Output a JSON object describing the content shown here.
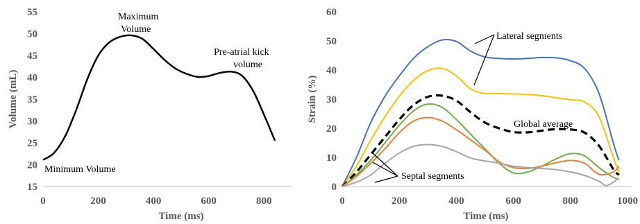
{
  "chart_data": [
    {
      "type": "line",
      "xlabel": "Time (ms)",
      "ylabel": "Volume (mL)",
      "xlim": [
        0,
        900
      ],
      "ylim": [
        15,
        55
      ],
      "xticks": [
        "0",
        "200",
        "400",
        "600",
        "800"
      ],
      "yticks": [
        "15",
        "20",
        "25",
        "30",
        "35",
        "40",
        "45",
        "50",
        "55"
      ],
      "grid": false,
      "series": [
        {
          "color": "#000000",
          "x": [
            0,
            40,
            80,
            120,
            160,
            200,
            240,
            280,
            320,
            360,
            400,
            440,
            480,
            520,
            560,
            600,
            640,
            680,
            720,
            760,
            800,
            840
          ],
          "y": [
            21.1,
            22.7,
            26.5,
            32.5,
            39.5,
            45.0,
            48.0,
            49.3,
            49.6,
            48.8,
            46.5,
            44.0,
            42.0,
            40.8,
            40.1,
            40.3,
            41.0,
            41.3,
            40.4,
            37.0,
            31.5,
            25.5
          ]
        }
      ],
      "annotations": [
        {
          "text": [
            "Maximum",
            "Volume"
          ]
        },
        {
          "text": [
            "Pre-atrial kick",
            "volume"
          ]
        },
        {
          "text": [
            "Minimum Volume"
          ]
        }
      ]
    },
    {
      "type": "line",
      "xlabel": "Time (ms)",
      "ylabel": "Strain (%)",
      "xlim": [
        0,
        1000
      ],
      "ylim": [
        0,
        60
      ],
      "xticks": [
        "0",
        "200",
        "400",
        "600",
        "800",
        "1000"
      ],
      "yticks": [
        "0",
        "10",
        "20",
        "30",
        "40",
        "50",
        "60"
      ],
      "grid": false,
      "series": [
        {
          "color": "#4472c4",
          "dash": false,
          "x": [
            0,
            50,
            100,
            150,
            200,
            250,
            300,
            350,
            400,
            450,
            500,
            550,
            600,
            650,
            700,
            750,
            800,
            850,
            900,
            950,
            970
          ],
          "y": [
            0,
            10,
            22,
            31,
            38,
            44,
            48,
            50.3,
            49.8,
            46.5,
            44.5,
            44,
            43.8,
            44,
            44.3,
            44.2,
            43.2,
            40.5,
            32,
            15,
            9
          ]
        },
        {
          "color": "#ffc000",
          "dash": false,
          "x": [
            0,
            50,
            100,
            150,
            200,
            250,
            300,
            350,
            400,
            450,
            500,
            550,
            600,
            650,
            700,
            750,
            800,
            850,
            900,
            950,
            970
          ],
          "y": [
            0,
            7,
            16,
            24,
            31,
            36.5,
            39.8,
            40.6,
            38,
            33.5,
            32,
            31.9,
            31.8,
            31.6,
            31.2,
            30.5,
            29.8,
            29,
            24,
            10,
            5
          ]
        },
        {
          "color": "#000000",
          "dash": true,
          "x": [
            0,
            50,
            100,
            150,
            200,
            250,
            300,
            350,
            400,
            450,
            500,
            550,
            600,
            650,
            700,
            750,
            800,
            850,
            900,
            950,
            970
          ],
          "y": [
            0,
            5,
            11,
            17,
            23,
            28,
            30.8,
            31.2,
            29.5,
            25.5,
            22,
            20,
            18.7,
            18.6,
            19.2,
            19.7,
            19.6,
            18.5,
            14,
            6,
            4
          ]
        },
        {
          "color": "#70ad47",
          "dash": false,
          "x": [
            0,
            50,
            100,
            150,
            200,
            250,
            300,
            350,
            400,
            450,
            500,
            550,
            600,
            650,
            700,
            750,
            800,
            850,
            900,
            950,
            970
          ],
          "y": [
            0,
            4,
            9,
            15,
            21,
            26,
            28.3,
            27.2,
            23,
            18,
            13,
            8,
            4.7,
            5,
            7,
            9.5,
            11.3,
            10.5,
            6.5,
            3.2,
            2.5
          ]
        },
        {
          "color": "#ed7d31",
          "dash": false,
          "x": [
            0,
            50,
            100,
            150,
            200,
            250,
            300,
            350,
            400,
            450,
            500,
            550,
            600,
            650,
            700,
            750,
            800,
            850,
            900,
            950,
            970
          ],
          "y": [
            0,
            3.5,
            8,
            13,
            18.5,
            22.5,
            23.7,
            22.5,
            19.5,
            16,
            12.5,
            8.5,
            6.5,
            6.2,
            7,
            8.2,
            9,
            8,
            4.2,
            5,
            7
          ]
        },
        {
          "color": "#a5a5a5",
          "dash": false,
          "x": [
            0,
            50,
            100,
            150,
            200,
            250,
            300,
            350,
            400,
            450,
            500,
            550,
            600,
            650,
            700,
            750,
            800,
            850,
            900,
            925,
            950,
            970
          ],
          "y": [
            0,
            1.5,
            4,
            8,
            11.5,
            13.8,
            14.4,
            13.8,
            12,
            9.8,
            8.8,
            8,
            7,
            6.5,
            6.2,
            5.8,
            5,
            3.8,
            1.8,
            0.3,
            1.5,
            3
          ]
        }
      ],
      "annotations": [
        {
          "text": [
            "Lateral segments"
          ]
        },
        {
          "text": [
            "Global average"
          ]
        },
        {
          "text": [
            "Septal segments"
          ]
        }
      ]
    }
  ]
}
